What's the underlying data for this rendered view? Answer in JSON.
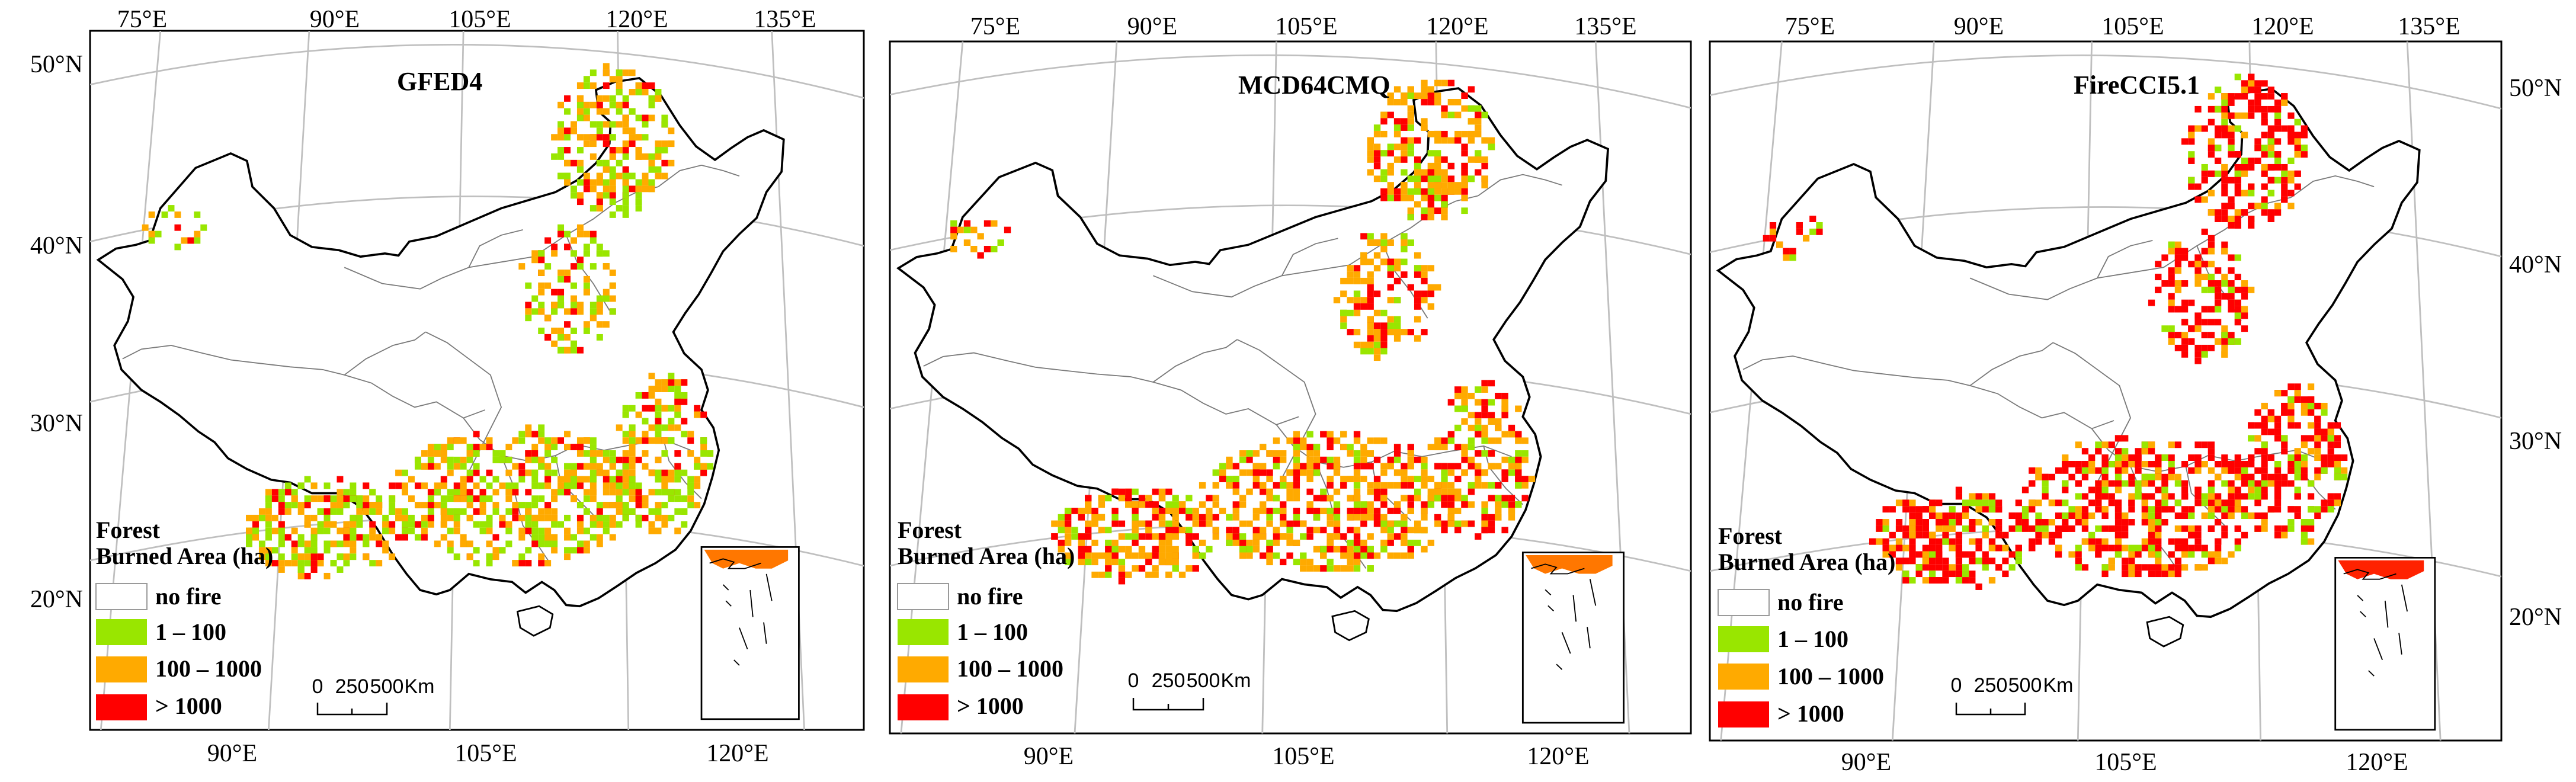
{
  "panels": [
    {
      "title": "GFED4",
      "top_ticks": [
        "75°E",
        "90°E",
        "105°E",
        "120°E",
        "135°E"
      ],
      "bottom_ticks": [
        "90°E",
        "105°E",
        "120°E"
      ],
      "left_ticks": [
        "50°N",
        "40°N",
        "30°N",
        "20°N"
      ],
      "right_ticks": []
    },
    {
      "title": "MCD64CMQ",
      "top_ticks": [
        "75°E",
        "90°E",
        "105°E",
        "120°E",
        "135°E"
      ],
      "bottom_ticks": [
        "90°E",
        "105°E",
        "120°E"
      ],
      "left_ticks": [],
      "right_ticks": []
    },
    {
      "title": "FireCCI5.1",
      "top_ticks": [
        "75°E",
        "90°E",
        "105°E",
        "120°E",
        "135°E"
      ],
      "bottom_ticks": [
        "90°E",
        "105°E",
        "120°E"
      ],
      "left_ticks": [],
      "right_ticks": [
        "50°N",
        "40°N",
        "30°N",
        "20°N"
      ]
    }
  ],
  "legend": {
    "heading_line1": "Forest",
    "heading_line2": "Burned Area (ha)",
    "classes": [
      {
        "label": "no fire",
        "color": "#ffffff"
      },
      {
        "label": "1 – 100",
        "color": "#99e600"
      },
      {
        "label": "100 – 1000",
        "color": "#ffaa00"
      },
      {
        "label": "> 1000",
        "color": "#ff0000"
      }
    ]
  },
  "scalebar": {
    "labels": [
      "0",
      "250",
      "500",
      "Km"
    ]
  },
  "colors": {
    "frame": "#000000",
    "graticule": "#bfbfbf",
    "boundary": "#000000",
    "country": "#808080"
  }
}
